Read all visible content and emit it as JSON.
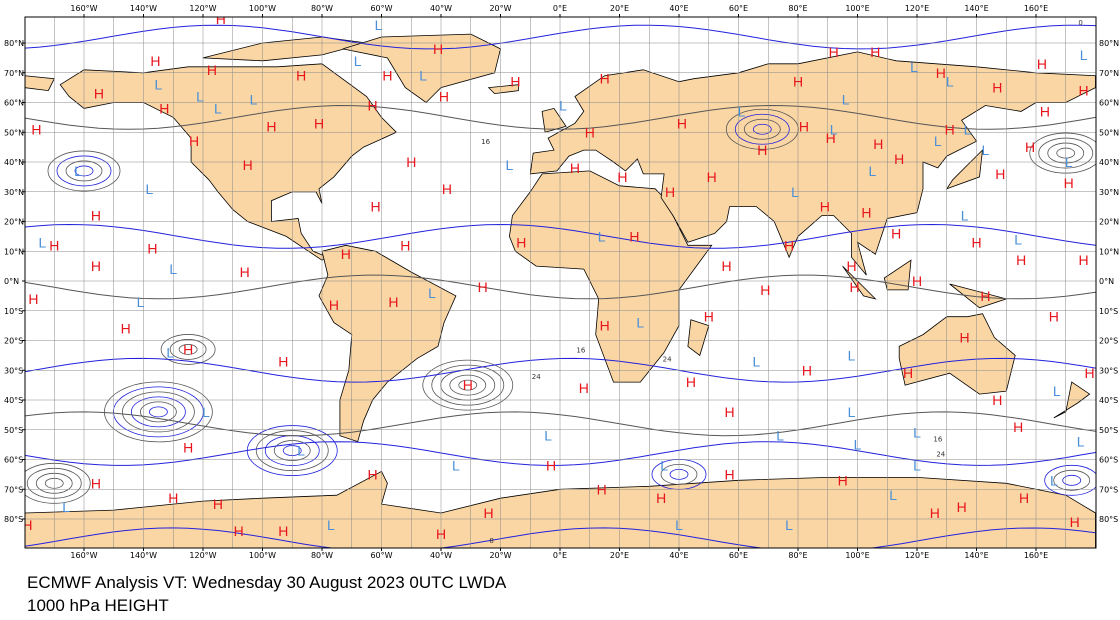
{
  "map": {
    "caption": [
      "ECMWF Analysis VT: Wednesday 30 August 2023 0UTC LWDA",
      "1000 hPa HEIGHT"
    ],
    "longitude_ticks": [
      {
        "value": -160,
        "label": "160°W"
      },
      {
        "value": -140,
        "label": "140°W"
      },
      {
        "value": -120,
        "label": "120°W"
      },
      {
        "value": -100,
        "label": "100°W"
      },
      {
        "value": -80,
        "label": "80°W"
      },
      {
        "value": -60,
        "label": "60°W"
      },
      {
        "value": -40,
        "label": "40°W"
      },
      {
        "value": -20,
        "label": "20°W"
      },
      {
        "value": 0,
        "label": "0°E"
      },
      {
        "value": 20,
        "label": "20°E"
      },
      {
        "value": 40,
        "label": "40°E"
      },
      {
        "value": 60,
        "label": "60°E"
      },
      {
        "value": 80,
        "label": "80°E"
      },
      {
        "value": 100,
        "label": "100°E"
      },
      {
        "value": 120,
        "label": "120°E"
      },
      {
        "value": 140,
        "label": "140°E"
      },
      {
        "value": 160,
        "label": "160°E"
      }
    ],
    "latitude_ticks": [
      {
        "value": 80,
        "label": "80°N"
      },
      {
        "value": 70,
        "label": "70°N"
      },
      {
        "value": 60,
        "label": "60°N"
      },
      {
        "value": 50,
        "label": "50°N"
      },
      {
        "value": 40,
        "label": "40°N"
      },
      {
        "value": 30,
        "label": "30°N"
      },
      {
        "value": 20,
        "label": "20°N"
      },
      {
        "value": 10,
        "label": "10°N"
      },
      {
        "value": 0,
        "label": "0°N"
      },
      {
        "value": -10,
        "label": "10°S"
      },
      {
        "value": -20,
        "label": "20°S"
      },
      {
        "value": -30,
        "label": "30°S"
      },
      {
        "value": -40,
        "label": "40°S"
      },
      {
        "value": -50,
        "label": "50°S"
      },
      {
        "value": -60,
        "label": "60°S"
      },
      {
        "value": -70,
        "label": "70°S"
      },
      {
        "value": -80,
        "label": "80°S"
      }
    ],
    "pressure_centers": [
      {
        "label": "H",
        "lon": -114,
        "lat": 88
      },
      {
        "label": "H",
        "lon": -136,
        "lat": 74
      },
      {
        "label": "H",
        "lon": -117,
        "lat": 71
      },
      {
        "label": "H",
        "lon": -155,
        "lat": 63
      },
      {
        "label": "H",
        "lon": -133,
        "lat": 58
      },
      {
        "label": "H",
        "lon": -176,
        "lat": 51
      },
      {
        "label": "H",
        "lon": -123,
        "lat": 47
      },
      {
        "label": "H",
        "lon": -105,
        "lat": 39
      },
      {
        "label": "H",
        "lon": -87,
        "lat": 69
      },
      {
        "label": "H",
        "lon": -97,
        "lat": 52
      },
      {
        "label": "H",
        "lon": -81,
        "lat": 53
      },
      {
        "label": "H",
        "lon": -63,
        "lat": 59
      },
      {
        "label": "H",
        "lon": -41,
        "lat": 78
      },
      {
        "label": "H",
        "lon": -58,
        "lat": 69
      },
      {
        "label": "H",
        "lon": -15,
        "lat": 67
      },
      {
        "label": "H",
        "lon": 15,
        "lat": 68
      },
      {
        "label": "H",
        "lon": 10,
        "lat": 50
      },
      {
        "label": "H",
        "lon": -50,
        "lat": 40
      },
      {
        "label": "H",
        "lon": -38,
        "lat": 31
      },
      {
        "label": "H",
        "lon": -62,
        "lat": 25
      },
      {
        "label": "H",
        "lon": -156,
        "lat": 22
      },
      {
        "label": "H",
        "lon": -170,
        "lat": 12
      },
      {
        "label": "H",
        "lon": -156,
        "lat": 5
      },
      {
        "label": "H",
        "lon": -137,
        "lat": 11
      },
      {
        "label": "H",
        "lon": -106,
        "lat": 3
      },
      {
        "label": "H",
        "lon": -72,
        "lat": 9
      },
      {
        "label": "H",
        "lon": -52,
        "lat": 12
      },
      {
        "label": "H",
        "lon": -26,
        "lat": -2
      },
      {
        "label": "H",
        "lon": -56,
        "lat": -7
      },
      {
        "label": "H",
        "lon": -177,
        "lat": -6
      },
      {
        "label": "H",
        "lon": -146,
        "lat": -16
      },
      {
        "label": "H",
        "lon": -125,
        "lat": -23
      },
      {
        "label": "H",
        "lon": -93,
        "lat": -27
      },
      {
        "label": "H",
        "lon": -76,
        "lat": -8
      },
      {
        "label": "H",
        "lon": -31,
        "lat": -35
      },
      {
        "label": "H",
        "lon": 8,
        "lat": -36
      },
      {
        "label": "H",
        "lon": 44,
        "lat": -34
      },
      {
        "label": "H",
        "lon": -125,
        "lat": -56
      },
      {
        "label": "H",
        "lon": -156,
        "lat": -68
      },
      {
        "label": "H",
        "lon": -130,
        "lat": -73
      },
      {
        "label": "H",
        "lon": -115,
        "lat": -75
      },
      {
        "label": "H",
        "lon": -108,
        "lat": -84
      },
      {
        "label": "H",
        "lon": -63,
        "lat": -65
      },
      {
        "label": "H",
        "lon": -3,
        "lat": -62
      },
      {
        "label": "H",
        "lon": 14,
        "lat": -70
      },
      {
        "label": "H",
        "lon": 34,
        "lat": -73
      },
      {
        "label": "H",
        "lon": 57,
        "lat": -65
      },
      {
        "label": "H",
        "lon": 95,
        "lat": -67
      },
      {
        "label": "H",
        "lon": 156,
        "lat": -73
      },
      {
        "label": "H",
        "lon": 173,
        "lat": -81
      },
      {
        "label": "H",
        "lon": 135,
        "lat": -76
      },
      {
        "label": "H",
        "lon": 126,
        "lat": -78
      },
      {
        "label": "H",
        "lon": -179,
        "lat": -82
      },
      {
        "label": "H",
        "lon": -40,
        "lat": -85
      },
      {
        "label": "H",
        "lon": -24,
        "lat": -78
      },
      {
        "label": "H",
        "lon": -93,
        "lat": -84
      },
      {
        "label": "H",
        "lon": 41,
        "lat": 53
      },
      {
        "label": "H",
        "lon": 68,
        "lat": 44
      },
      {
        "label": "H",
        "lon": 82,
        "lat": 52
      },
      {
        "label": "H",
        "lon": 114,
        "lat": 41
      },
      {
        "label": "H",
        "lon": 113,
        "lat": 16
      },
      {
        "label": "H",
        "lon": 89,
        "lat": 25
      },
      {
        "label": "H",
        "lon": 77,
        "lat": 12
      },
      {
        "label": "H",
        "lon": 56,
        "lat": 5
      },
      {
        "label": "H",
        "lon": 69,
        "lat": -3
      },
      {
        "label": "H",
        "lon": 98,
        "lat": 5
      },
      {
        "label": "H",
        "lon": 99,
        "lat": -2
      },
      {
        "label": "H",
        "lon": 117,
        "lat": -31
      },
      {
        "label": "H",
        "lon": 136,
        "lat": -19
      },
      {
        "label": "H",
        "lon": 143,
        "lat": -5
      },
      {
        "label": "H",
        "lon": 155,
        "lat": 7
      },
      {
        "label": "H",
        "lon": 166,
        "lat": -12
      },
      {
        "label": "H",
        "lon": 178,
        "lat": -31
      },
      {
        "label": "H",
        "lon": 148,
        "lat": 36
      },
      {
        "label": "H",
        "lon": 171,
        "lat": 33
      },
      {
        "label": "H",
        "lon": 176,
        "lat": 7
      },
      {
        "label": "H",
        "lon": 176,
        "lat": 64
      },
      {
        "label": "H",
        "lon": 162,
        "lat": 73
      },
      {
        "label": "H",
        "lon": 163,
        "lat": 57
      },
      {
        "label": "H",
        "lon": 158,
        "lat": 45
      },
      {
        "label": "H",
        "lon": 128,
        "lat": 70
      },
      {
        "label": "H",
        "lon": 147,
        "lat": 65
      },
      {
        "label": "H",
        "lon": 131,
        "lat": 51
      },
      {
        "label": "H",
        "lon": 91,
        "lat": 48
      },
      {
        "label": "H",
        "lon": 107,
        "lat": 46
      },
      {
        "label": "H",
        "lon": 80,
        "lat": 67
      },
      {
        "label": "H",
        "lon": 92,
        "lat": 77
      },
      {
        "label": "H",
        "lon": 106,
        "lat": 77
      },
      {
        "label": "H",
        "lon": 51,
        "lat": 35
      },
      {
        "label": "H",
        "lon": 25,
        "lat": 15
      },
      {
        "label": "H",
        "lon": -13,
        "lat": 13
      },
      {
        "label": "H",
        "lon": 21,
        "lat": 35
      },
      {
        "label": "H",
        "lon": 37,
        "lat": 30
      },
      {
        "label": "H",
        "lon": 50,
        "lat": -12
      },
      {
        "label": "H",
        "lon": 15,
        "lat": -15
      },
      {
        "label": "H",
        "lon": 154,
        "lat": -49
      },
      {
        "label": "H",
        "lon": 147,
        "lat": -40
      },
      {
        "label": "H",
        "lon": 103,
        "lat": 23
      },
      {
        "label": "H",
        "lon": 140,
        "lat": 13
      },
      {
        "label": "H",
        "lon": 120,
        "lat": 0
      },
      {
        "label": "H",
        "lon": 83,
        "lat": -30
      },
      {
        "label": "H",
        "lon": 57,
        "lat": -44
      },
      {
        "label": "H",
        "lon": 5,
        "lat": 38
      },
      {
        "label": "H",
        "lon": -39,
        "lat": 62
      },
      {
        "label": "L",
        "lon": -61,
        "lat": 86
      },
      {
        "label": "L",
        "lon": -68,
        "lat": 74
      },
      {
        "label": "L",
        "lon": -46,
        "lat": 69
      },
      {
        "label": "L",
        "lon": -17,
        "lat": 39
      },
      {
        "label": "L",
        "lon": 1,
        "lat": 59
      },
      {
        "label": "L",
        "lon": -135,
        "lat": 66
      },
      {
        "label": "L",
        "lon": -121,
        "lat": 62
      },
      {
        "label": "L",
        "lon": -115,
        "lat": 58
      },
      {
        "label": "L",
        "lon": -103,
        "lat": 61
      },
      {
        "label": "L",
        "lon": -162,
        "lat": 37
      },
      {
        "label": "L",
        "lon": -138,
        "lat": 31
      },
      {
        "label": "L",
        "lon": -174,
        "lat": 13
      },
      {
        "label": "L",
        "lon": -130,
        "lat": 4
      },
      {
        "label": "L",
        "lon": -141,
        "lat": -7
      },
      {
        "label": "L",
        "lon": -131,
        "lat": -24
      },
      {
        "label": "L",
        "lon": -119,
        "lat": -44
      },
      {
        "label": "L",
        "lon": -87,
        "lat": -57
      },
      {
        "label": "L",
        "lon": -35,
        "lat": -62
      },
      {
        "label": "L",
        "lon": -43,
        "lat": -4
      },
      {
        "label": "L",
        "lon": 14,
        "lat": 15
      },
      {
        "label": "L",
        "lon": 27,
        "lat": -14
      },
      {
        "label": "L",
        "lon": -4,
        "lat": -52
      },
      {
        "label": "L",
        "lon": 35,
        "lat": -62
      },
      {
        "label": "L",
        "lon": 66,
        "lat": -27
      },
      {
        "label": "L",
        "lon": 98,
        "lat": -25
      },
      {
        "label": "L",
        "lon": 74,
        "lat": -52
      },
      {
        "label": "L",
        "lon": 100,
        "lat": -55
      },
      {
        "label": "L",
        "lon": 98,
        "lat": -44
      },
      {
        "label": "L",
        "lon": 120,
        "lat": -51
      },
      {
        "label": "L",
        "lon": 112,
        "lat": -72
      },
      {
        "label": "L",
        "lon": 40,
        "lat": -82
      },
      {
        "label": "L",
        "lon": 166,
        "lat": -67
      },
      {
        "label": "L",
        "lon": 154,
        "lat": 14
      },
      {
        "label": "L",
        "lon": 136,
        "lat": 22
      },
      {
        "label": "L",
        "lon": 105,
        "lat": 37
      },
      {
        "label": "L",
        "lon": 127,
        "lat": 47
      },
      {
        "label": "L",
        "lon": 143,
        "lat": 44
      },
      {
        "label": "L",
        "lon": 137,
        "lat": 51
      },
      {
        "label": "L",
        "lon": 96,
        "lat": 61
      },
      {
        "label": "L",
        "lon": 119,
        "lat": 72
      },
      {
        "label": "L",
        "lon": 131,
        "lat": 67
      },
      {
        "label": "L",
        "lon": 92,
        "lat": 51
      },
      {
        "label": "L",
        "lon": 171,
        "lat": 40
      },
      {
        "label": "L",
        "lon": 176,
        "lat": 76
      },
      {
        "label": "L",
        "lon": 61,
        "lat": 57
      },
      {
        "label": "L",
        "lon": 79,
        "lat": 30
      },
      {
        "label": "L",
        "lon": 167,
        "lat": -37
      },
      {
        "label": "L",
        "lon": -166,
        "lat": -76
      },
      {
        "label": "L",
        "lon": -77,
        "lat": -82
      },
      {
        "label": "L",
        "lon": 77,
        "lat": -82
      },
      {
        "label": "L",
        "lon": 120,
        "lat": -62
      },
      {
        "label": "L",
        "lon": 175,
        "lat": -54
      }
    ],
    "contour_labels": [
      {
        "label": "16",
        "lon": -25,
        "lat": 47
      },
      {
        "label": "24",
        "lon": -8,
        "lat": -32
      },
      {
        "label": "8",
        "lon": -23,
        "lat": -87
      },
      {
        "label": "0",
        "lon": 175,
        "lat": 87
      },
      {
        "label": "16",
        "lon": 127,
        "lat": -53
      },
      {
        "label": "24",
        "lon": 128,
        "lat": -58
      },
      {
        "label": "16",
        "lon": 7,
        "lat": -23
      },
      {
        "label": "24",
        "lon": 36,
        "lat": -26
      }
    ]
  }
}
